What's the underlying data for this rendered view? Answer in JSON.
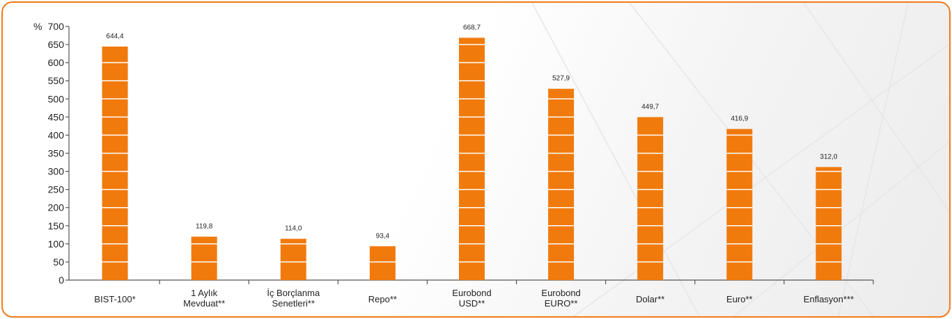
{
  "chart_data": {
    "type": "bar",
    "ylabel": "%",
    "ylim": [
      0,
      700
    ],
    "yticks": [
      0,
      50,
      100,
      150,
      200,
      250,
      300,
      350,
      400,
      450,
      500,
      550,
      600,
      650,
      700
    ],
    "categories": [
      [
        "BIST-100*"
      ],
      [
        "1 Aylık",
        "Mevduat**"
      ],
      [
        "İç Borçlanma",
        "Senetleri**"
      ],
      [
        "Repo**"
      ],
      [
        "Eurobond",
        "USD**"
      ],
      [
        "Eurobond",
        "EURO**"
      ],
      [
        "Dolar**"
      ],
      [
        "Euro**"
      ],
      [
        "Enflasyon***"
      ]
    ],
    "values": [
      644.4,
      119.8,
      114.0,
      93.4,
      668.7,
      527.9,
      449.7,
      416.9,
      312.0
    ],
    "value_labels": [
      "644,4",
      "119,8",
      "114,0",
      "93,4",
      "668,7",
      "527,9",
      "449,7",
      "416,9",
      "312,0"
    ],
    "bar_color": "#f07a0c",
    "grid": false
  }
}
